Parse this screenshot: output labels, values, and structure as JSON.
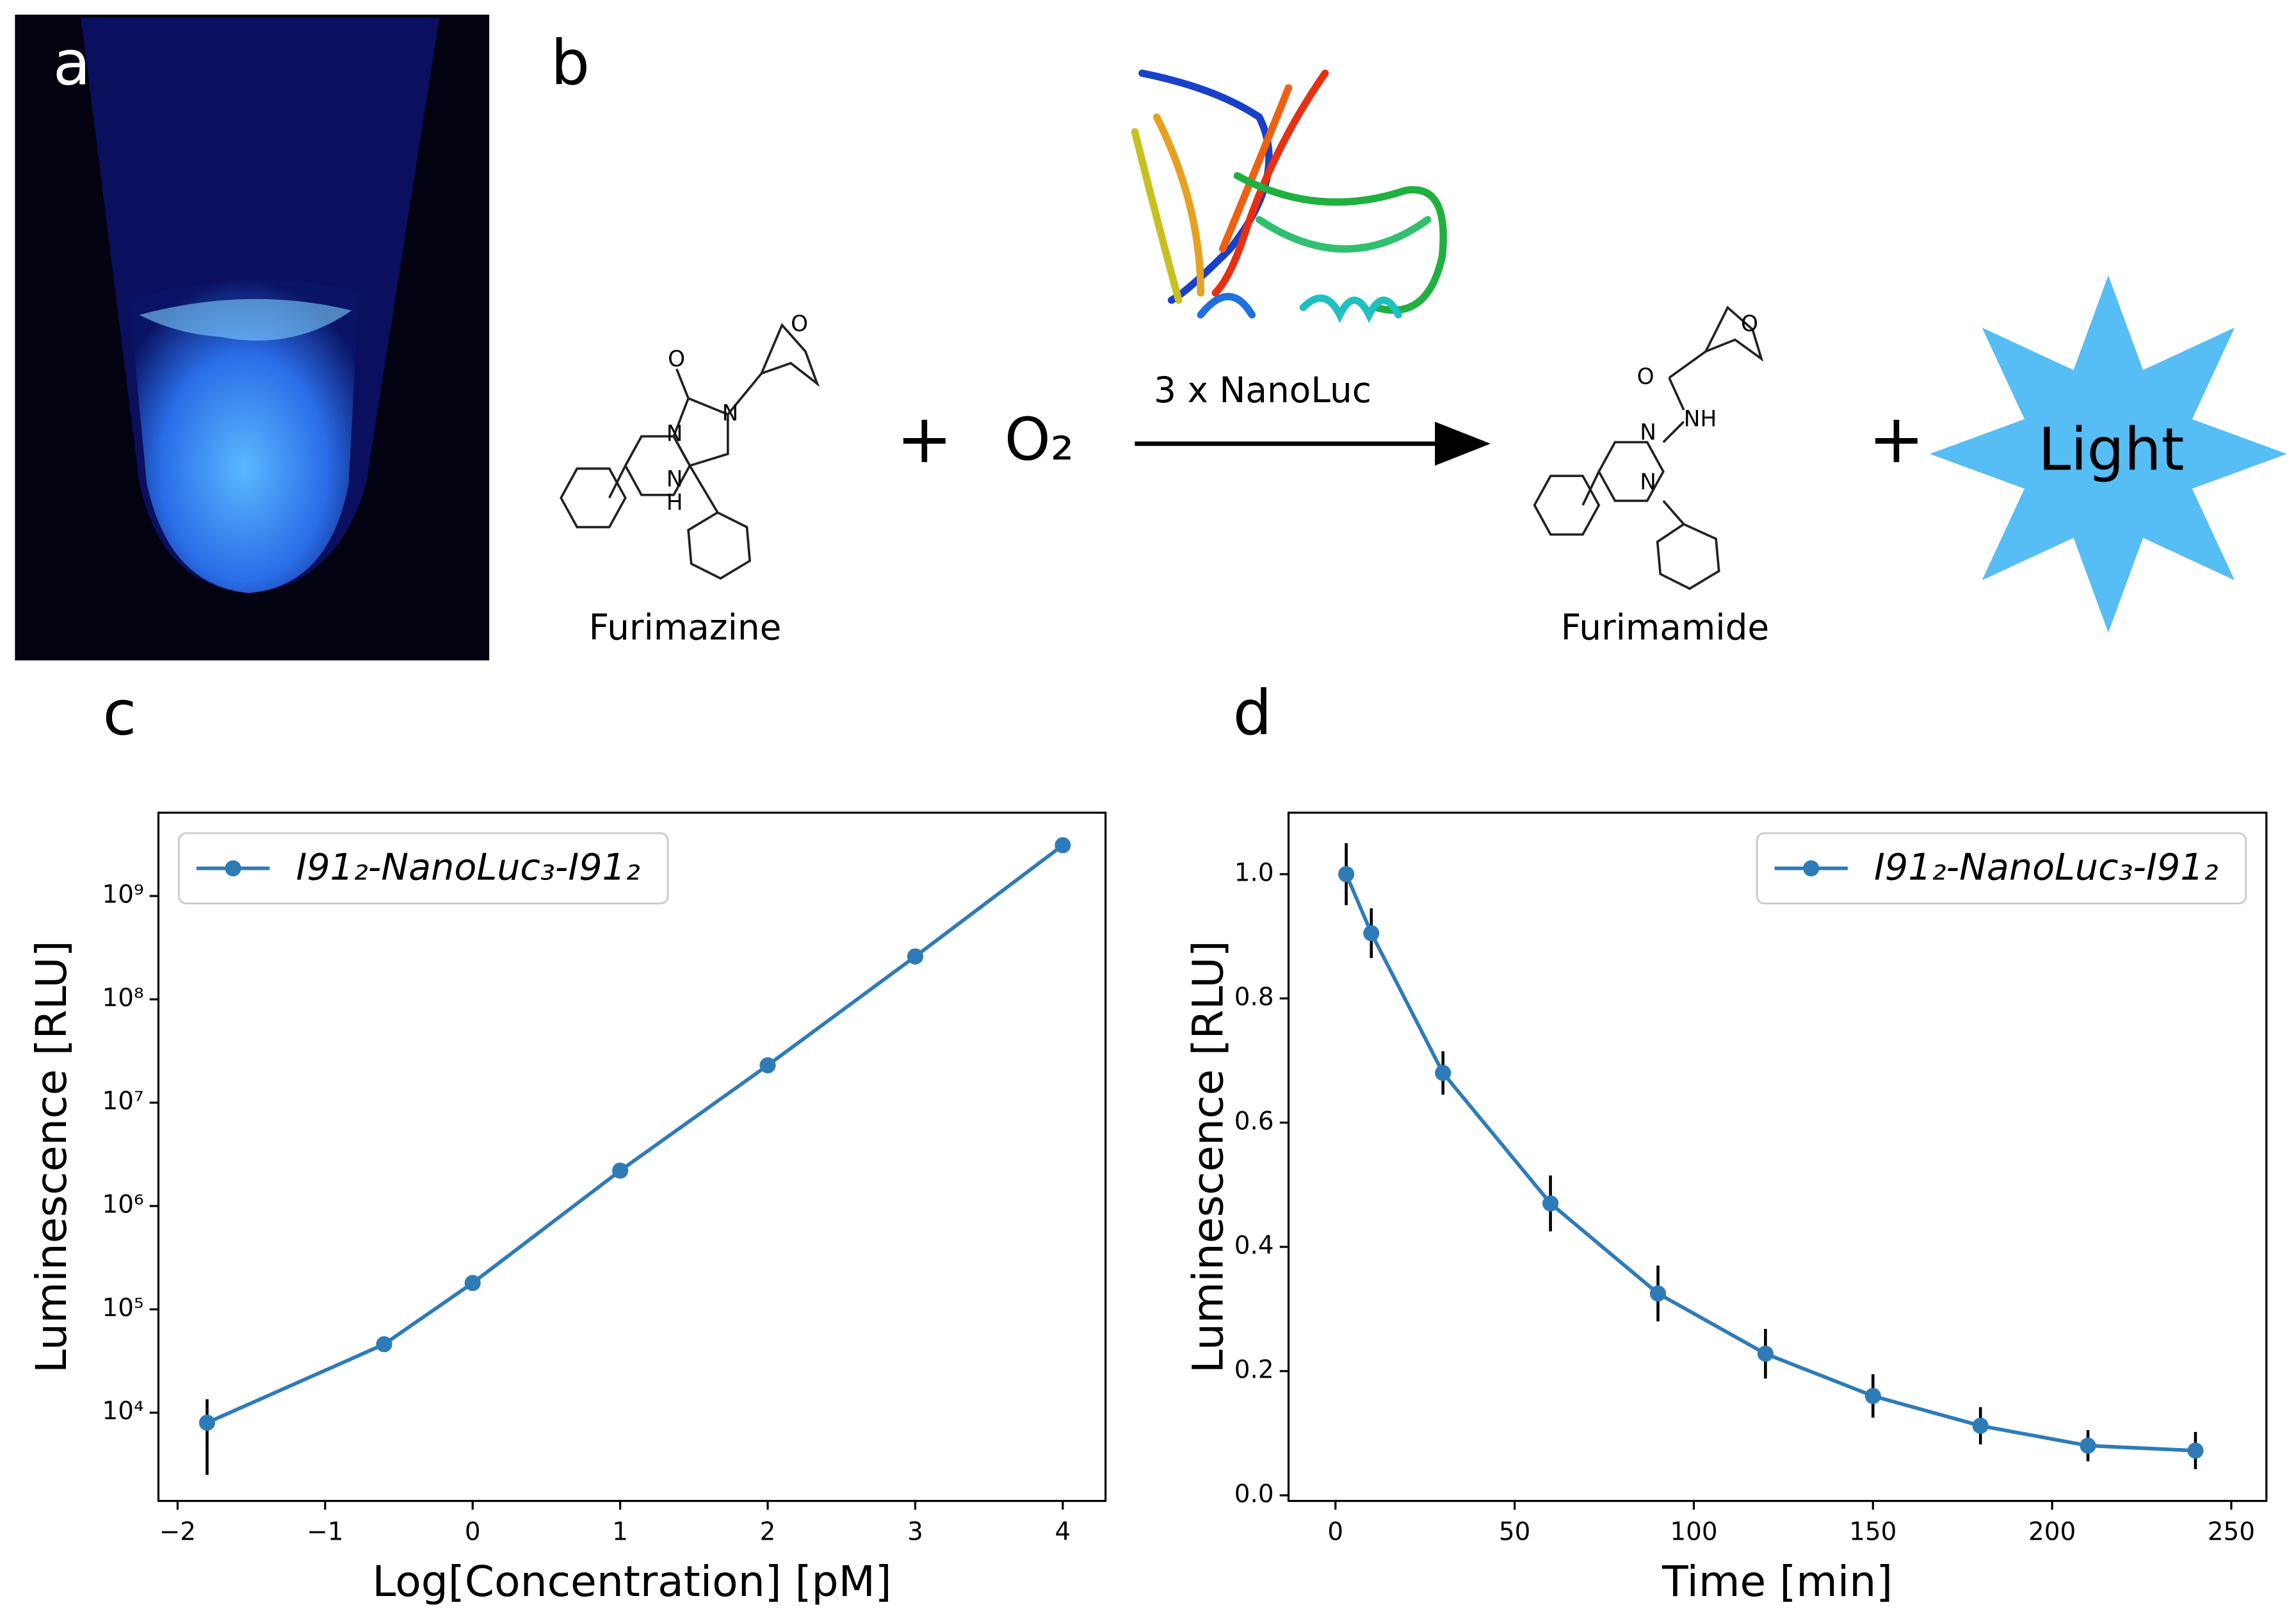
{
  "panels": {
    "a": {
      "label": "a"
    },
    "b": {
      "label": "b",
      "reactant": "Furimazine",
      "reactant_atoms": [
        "O",
        "N",
        "N",
        "N",
        "H",
        "O"
      ],
      "plus_1": "+",
      "oxygen": "O₂",
      "enzyme": "3 x NanoLuc",
      "product": "Furimamide",
      "product_atoms": [
        "O",
        "NH",
        "N",
        "N",
        "O"
      ],
      "plus_2": "+",
      "light": "Light"
    }
  },
  "chart_data": [
    {
      "type": "line",
      "panel_label": "c",
      "xlabel": "Log[Concentration] [pM]",
      "ylabel": "Luminescence [RLU]",
      "x": [
        -1.8,
        -0.6,
        0,
        1,
        2,
        3,
        4
      ],
      "series": [
        {
          "name": "I91₂-NanoLuc₃-I91₂",
          "color": "#2e7bb8",
          "values": [
            8000,
            46000,
            180000,
            2200000,
            23000000,
            260000000,
            3100000000
          ],
          "errors": [
            5500,
            2500,
            10000,
            150000,
            1500000,
            15000000,
            180000000
          ]
        }
      ],
      "xlim": [
        -2.13,
        4.29
      ],
      "xticks": [
        {
          "value": -2,
          "label": "−2"
        },
        {
          "value": -1,
          "label": "−1"
        },
        0,
        1,
        2,
        3,
        4
      ],
      "ylim": [
        1400,
        6400000000
      ],
      "ylog": true,
      "yticks": [
        {
          "value": 10000,
          "label": "10⁴"
        },
        {
          "value": 100000,
          "label": "10⁵"
        },
        {
          "value": 1000000,
          "label": "10⁶"
        },
        {
          "value": 10000000,
          "label": "10⁷"
        },
        {
          "value": 100000000,
          "label": "10⁸"
        },
        {
          "value": 1000000000,
          "label": "10⁹"
        }
      ],
      "legend": "upper left",
      "grid": false
    },
    {
      "type": "line",
      "panel_label": "d",
      "xlabel": "Time [min]",
      "ylabel": "Luminescence [RLU]",
      "x": [
        3,
        10,
        30,
        60,
        90,
        120,
        150,
        180,
        210,
        240
      ],
      "series": [
        {
          "name": "I91₂-NanoLuc₃-I91₂",
          "color": "#2e7bb8",
          "values": [
            1.0,
            0.905,
            0.68,
            0.47,
            0.325,
            0.228,
            0.16,
            0.112,
            0.08,
            0.072
          ],
          "errors": [
            0.05,
            0.04,
            0.035,
            0.045,
            0.045,
            0.04,
            0.035,
            0.03,
            0.025,
            0.03
          ]
        }
      ],
      "xlim": [
        -13.1,
        259.8
      ],
      "xticks": [
        0,
        50,
        100,
        150,
        200,
        250
      ],
      "ylim": [
        -0.009,
        1.099
      ],
      "ylog": false,
      "yticks": [
        {
          "value": 0,
          "label": "0.0"
        },
        {
          "value": 0.2,
          "label": "0.2"
        },
        {
          "value": 0.4,
          "label": "0.4"
        },
        {
          "value": 0.6,
          "label": "0.6"
        },
        {
          "value": 0.8,
          "label": "0.8"
        },
        {
          "value": 1,
          "label": "1.0"
        }
      ],
      "legend": "upper right",
      "grid": false
    }
  ]
}
